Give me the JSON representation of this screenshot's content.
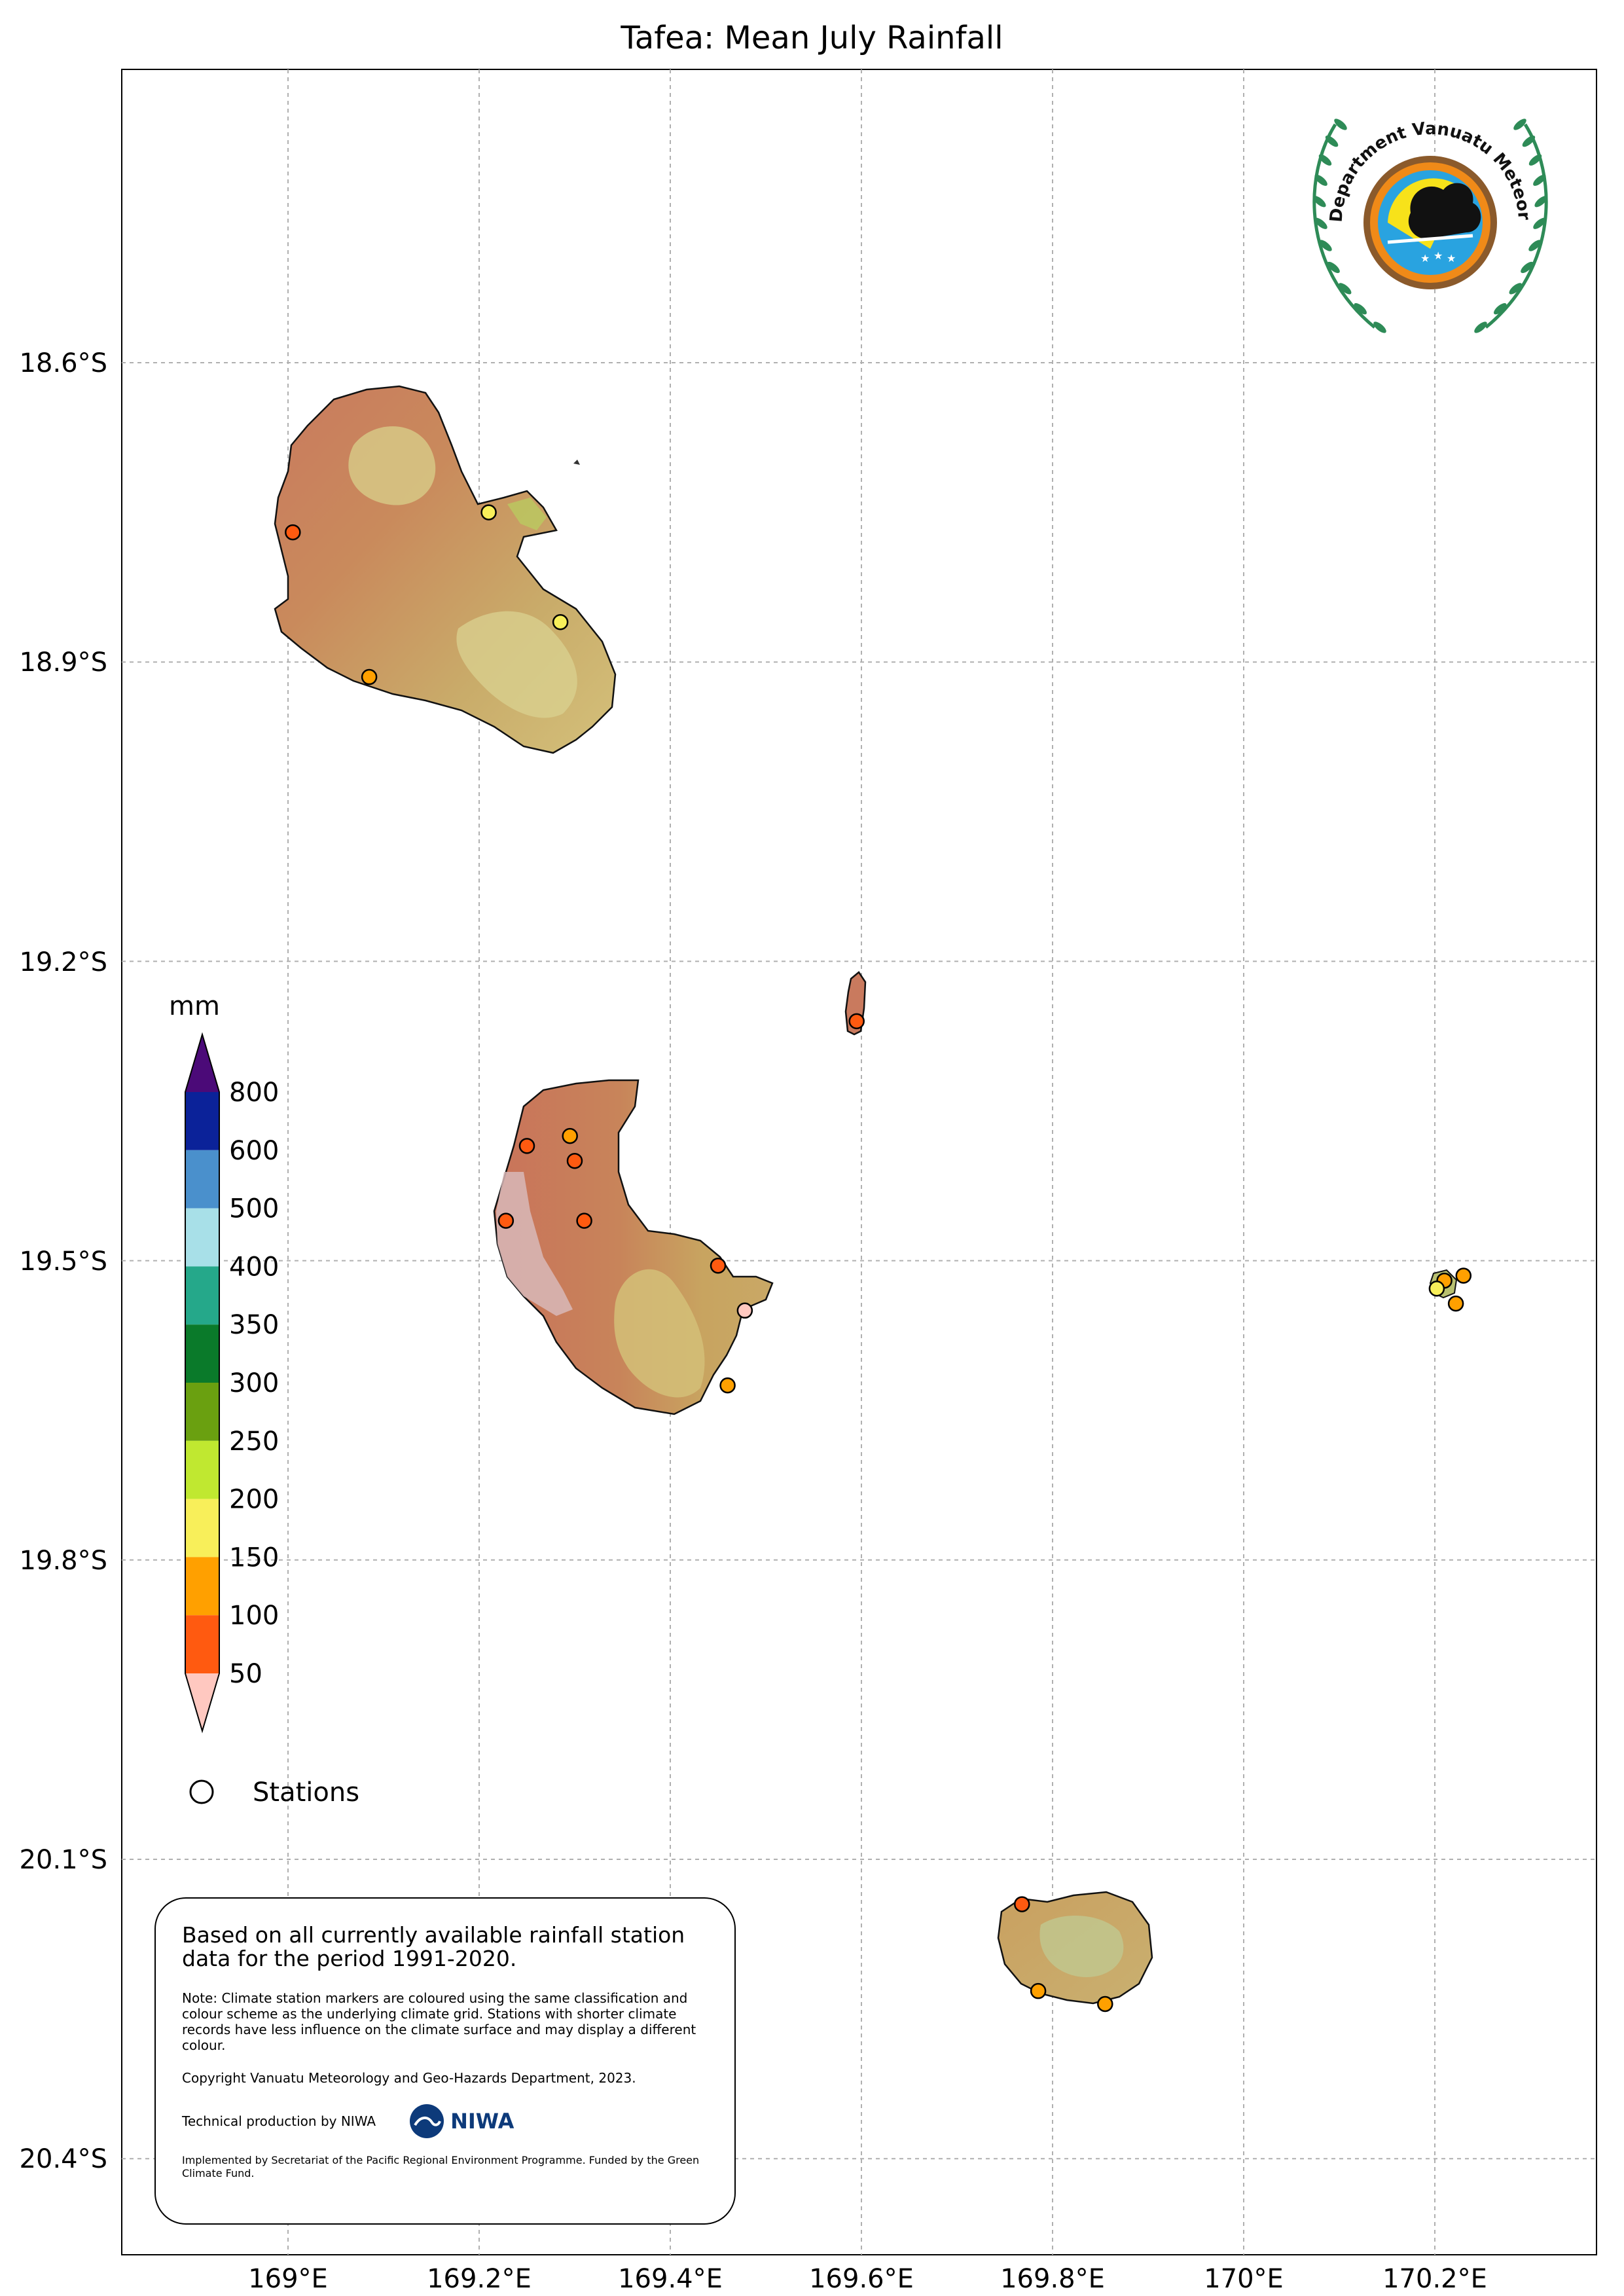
{
  "title": "Tafea: Mean July Rainfall",
  "axes": {
    "lat_labels": [
      "18.6°S",
      "18.9°S",
      "19.2°S",
      "19.5°S",
      "19.8°S",
      "20.1°S",
      "20.4°S"
    ],
    "lon_labels": [
      "169°E",
      "169.2°E",
      "169.4°E",
      "169.6°E",
      "169.8°E",
      "170°E",
      "170.2°E"
    ]
  },
  "colorbar": {
    "unit": "mm",
    "labels": [
      "800",
      "600",
      "500",
      "400",
      "350",
      "300",
      "250",
      "200",
      "150",
      "100",
      "50"
    ],
    "colors": [
      "#0b2299",
      "#4a90cc",
      "#a8e0e8",
      "#25a88a",
      "#0a7a2a",
      "#6aa010",
      "#c0e830",
      "#f8ef5a",
      "#ffa000",
      "#ff5a10"
    ],
    "over_color": "#4b0a78",
    "under_color": "#ffc8c0"
  },
  "legend": {
    "stations_label": "Stations"
  },
  "info": {
    "main": "Based on all currently available rainfall station data for the period 1991-2020.",
    "note": "Note: Climate station markers are coloured using the same classification and colour scheme as the underlying climate grid. Stations with shorter climate records have less influence on the climate surface and may display a different colour.",
    "copyright": "Copyright Vanuatu Meteorology and Geo-Hazards Department, 2023.",
    "technical": "Technical production by NIWA",
    "niwa_logo_text": "NIWA",
    "funding": "Implemented by Secretariat of the Pacific Regional Environment Programme. Funded by the Green Climate Fund."
  },
  "logo": {
    "ring_text": "Department Vanuatu Meteorology and Geo-Hazards"
  },
  "stations": [
    {
      "lon": 169.005,
      "lat": 18.77,
      "color": "#ff5a10"
    },
    {
      "lon": 169.21,
      "lat": 18.75,
      "color": "#f8ef5a"
    },
    {
      "lon": 169.285,
      "lat": 18.86,
      "color": "#f8ef5a"
    },
    {
      "lon": 169.085,
      "lat": 18.915,
      "color": "#ffa000"
    },
    {
      "lon": 169.595,
      "lat": 19.26,
      "color": "#ff5a10"
    },
    {
      "lon": 169.25,
      "lat": 19.385,
      "color": "#ff5a10"
    },
    {
      "lon": 169.295,
      "lat": 19.375,
      "color": "#ffa000"
    },
    {
      "lon": 169.3,
      "lat": 19.4,
      "color": "#ff5a10"
    },
    {
      "lon": 169.228,
      "lat": 19.46,
      "color": "#ff5a10"
    },
    {
      "lon": 169.31,
      "lat": 19.46,
      "color": "#ff5a10"
    },
    {
      "lon": 169.45,
      "lat": 19.505,
      "color": "#ff5a10"
    },
    {
      "lon": 169.478,
      "lat": 19.55,
      "color": "#ffc8c0"
    },
    {
      "lon": 169.46,
      "lat": 19.625,
      "color": "#ffa000"
    },
    {
      "lon": 170.21,
      "lat": 19.52,
      "color": "#ffa000"
    },
    {
      "lon": 170.23,
      "lat": 19.515,
      "color": "#ffa000"
    },
    {
      "lon": 170.202,
      "lat": 19.528,
      "color": "#f8ef5a"
    },
    {
      "lon": 170.222,
      "lat": 19.543,
      "color": "#ffa000"
    },
    {
      "lon": 169.768,
      "lat": 20.145,
      "color": "#ff5a10"
    },
    {
      "lon": 169.785,
      "lat": 20.232,
      "color": "#ffa000"
    },
    {
      "lon": 169.855,
      "lat": 20.245,
      "color": "#ffa000"
    }
  ]
}
